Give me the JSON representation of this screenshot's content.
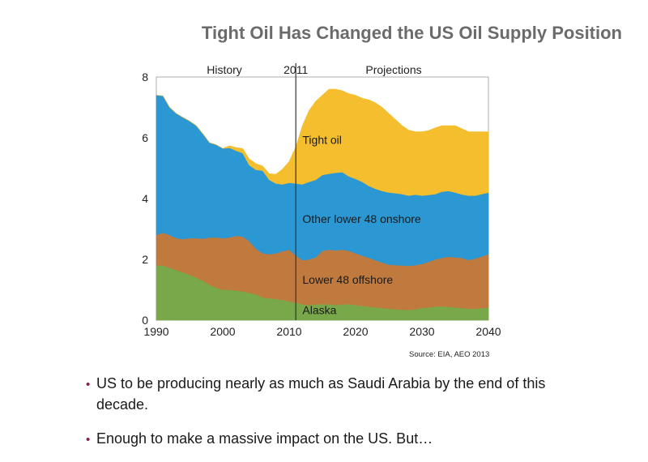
{
  "page": {
    "title": "Tight Oil Has Changed the US Oil Supply Position",
    "source": "Source: EIA, AEO 2013",
    "bullets": [
      "US to be producing nearly as much as Saudi Arabia by the end of this decade.",
      "Enough to make a massive impact on the US. But…"
    ]
  },
  "chart_data": {
    "type": "area",
    "stacked": true,
    "x": [
      1990,
      1991,
      1992,
      1993,
      1994,
      1995,
      1996,
      1997,
      1998,
      1999,
      2000,
      2001,
      2002,
      2003,
      2004,
      2005,
      2006,
      2007,
      2008,
      2009,
      2010,
      2011,
      2012,
      2013,
      2014,
      2015,
      2016,
      2017,
      2018,
      2019,
      2020,
      2021,
      2022,
      2023,
      2024,
      2025,
      2026,
      2027,
      2028,
      2029,
      2030,
      2031,
      2032,
      2033,
      2034,
      2035,
      2036,
      2037,
      2038,
      2039,
      2040
    ],
    "series": [
      {
        "name": "Alaska",
        "color": "#78a84a",
        "values": [
          1.8,
          1.8,
          1.72,
          1.65,
          1.57,
          1.5,
          1.4,
          1.3,
          1.17,
          1.07,
          1.0,
          1.0,
          0.98,
          0.95,
          0.9,
          0.85,
          0.75,
          0.72,
          0.7,
          0.67,
          0.62,
          0.58,
          0.52,
          0.5,
          0.52,
          0.53,
          0.52,
          0.5,
          0.52,
          0.53,
          0.5,
          0.47,
          0.45,
          0.42,
          0.4,
          0.38,
          0.36,
          0.35,
          0.34,
          0.36,
          0.4,
          0.42,
          0.45,
          0.45,
          0.44,
          0.42,
          0.4,
          0.38,
          0.38,
          0.4,
          0.42
        ]
      },
      {
        "name": "Lower 48 offshore",
        "color": "#c07a3e",
        "values": [
          1.0,
          1.08,
          1.08,
          1.05,
          1.1,
          1.2,
          1.3,
          1.38,
          1.55,
          1.65,
          1.7,
          1.72,
          1.8,
          1.8,
          1.7,
          1.5,
          1.45,
          1.45,
          1.5,
          1.6,
          1.7,
          1.55,
          1.45,
          1.5,
          1.55,
          1.75,
          1.8,
          1.8,
          1.8,
          1.75,
          1.7,
          1.65,
          1.6,
          1.55,
          1.5,
          1.45,
          1.45,
          1.45,
          1.45,
          1.45,
          1.45,
          1.5,
          1.55,
          1.6,
          1.65,
          1.65,
          1.65,
          1.6,
          1.65,
          1.7,
          1.75
        ]
      },
      {
        "name": "Other lower 48 onshore",
        "color": "#2b97d3",
        "values": [
          4.6,
          4.5,
          4.2,
          4.1,
          4.0,
          3.85,
          3.7,
          3.45,
          3.12,
          3.05,
          2.95,
          2.95,
          2.8,
          2.75,
          2.5,
          2.6,
          2.72,
          2.45,
          2.3,
          2.2,
          2.2,
          2.37,
          2.5,
          2.55,
          2.55,
          2.5,
          2.5,
          2.55,
          2.55,
          2.45,
          2.45,
          2.43,
          2.37,
          2.35,
          2.35,
          2.37,
          2.37,
          2.35,
          2.31,
          2.32,
          2.25,
          2.2,
          2.15,
          2.18,
          2.16,
          2.13,
          2.09,
          2.12,
          2.07,
          2.05,
          2.03
        ]
      },
      {
        "name": "Tight oil",
        "color": "#f4be2e",
        "values": [
          0,
          0,
          0,
          0,
          0,
          0,
          0,
          0,
          0,
          0,
          0,
          0.07,
          0.1,
          0.15,
          0.2,
          0.2,
          0.15,
          0.2,
          0.3,
          0.5,
          0.7,
          1.2,
          1.93,
          2.35,
          2.58,
          2.62,
          2.78,
          2.75,
          2.68,
          2.72,
          2.75,
          2.75,
          2.83,
          2.83,
          2.75,
          2.6,
          2.42,
          2.25,
          2.15,
          2.07,
          2.1,
          2.12,
          2.18,
          2.17,
          2.15,
          2.2,
          2.16,
          2.1,
          2.1,
          2.05,
          2.0
        ]
      }
    ],
    "xlim": [
      1990,
      2040
    ],
    "ylim": [
      0,
      8
    ],
    "xticks": [
      1990,
      2000,
      2010,
      2020,
      2030,
      2040
    ],
    "yticks": [
      0,
      2,
      4,
      6,
      8
    ],
    "grid": false,
    "divider": {
      "x": 2011,
      "label": "2011"
    },
    "period_labels": {
      "history": "History",
      "projections": "Projections"
    },
    "series_labels": [
      {
        "text": "Tight oil",
        "x": 2012.0,
        "y": 5.8
      },
      {
        "text": "Other lower 48 onshore",
        "x": 2012.0,
        "y": 3.2
      },
      {
        "text": "Lower 48 offshore",
        "x": 2012.0,
        "y": 1.2
      },
      {
        "text": "Alaska",
        "x": 2012.0,
        "y": 0.2
      }
    ]
  }
}
